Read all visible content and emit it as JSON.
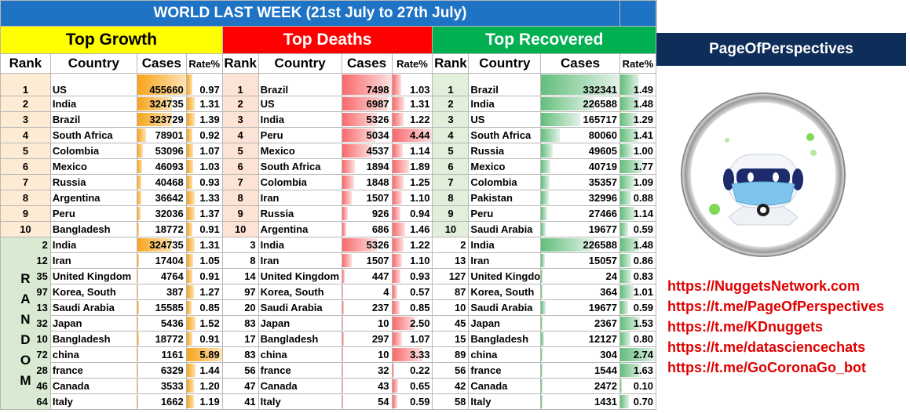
{
  "title": "WORLD LAST WEEK (21st July to 27th July)",
  "sections": {
    "growth": "Top Growth",
    "deaths": "Top Deaths",
    "recovered": "Top Recovered"
  },
  "headers": {
    "rank": "Rank",
    "country": "Country",
    "cases": "Cases",
    "rate": "Rate%"
  },
  "random_label": "RANDOM",
  "colors": {
    "title_bg": "#1f73c4",
    "growth": "#ffff00",
    "deaths": "#ff0000",
    "recovered": "#00b050",
    "brand_band": "#0e2d59",
    "link": "#e00000"
  },
  "growth_rows": [
    {
      "rank": "1",
      "country": "US",
      "cases": "455660",
      "rate": "0.97"
    },
    {
      "rank": "2",
      "country": "India",
      "cases": "324735",
      "rate": "1.31"
    },
    {
      "rank": "3",
      "country": "Brazil",
      "cases": "323729",
      "rate": "1.39"
    },
    {
      "rank": "4",
      "country": "South Africa",
      "cases": "78901",
      "rate": "0.92"
    },
    {
      "rank": "5",
      "country": "Colombia",
      "cases": "53096",
      "rate": "1.07"
    },
    {
      "rank": "6",
      "country": "Mexico",
      "cases": "46093",
      "rate": "1.03"
    },
    {
      "rank": "7",
      "country": "Russia",
      "cases": "40468",
      "rate": "0.93"
    },
    {
      "rank": "8",
      "country": "Argentina",
      "cases": "36642",
      "rate": "1.33"
    },
    {
      "rank": "9",
      "country": "Peru",
      "cases": "32036",
      "rate": "1.37"
    },
    {
      "rank": "10",
      "country": "Bangladesh",
      "cases": "18772",
      "rate": "0.91"
    },
    {
      "rank": "2",
      "country": "India",
      "cases": "324735",
      "rate": "1.31"
    },
    {
      "rank": "12",
      "country": "Iran",
      "cases": "17404",
      "rate": "1.05"
    },
    {
      "rank": "35",
      "country": "United Kingdom",
      "cases": "4764",
      "rate": "0.91"
    },
    {
      "rank": "97",
      "country": "Korea, South",
      "cases": "387",
      "rate": "1.27"
    },
    {
      "rank": "13",
      "country": "Saudi Arabia",
      "cases": "15585",
      "rate": "0.85"
    },
    {
      "rank": "32",
      "country": "Japan",
      "cases": "5436",
      "rate": "1.52"
    },
    {
      "rank": "10",
      "country": "Bangladesh",
      "cases": "18772",
      "rate": "0.91"
    },
    {
      "rank": "72",
      "country": "china",
      "cases": "1161",
      "rate": "5.89"
    },
    {
      "rank": "28",
      "country": "france",
      "cases": "6329",
      "rate": "1.44"
    },
    {
      "rank": "46",
      "country": "Canada",
      "cases": "3533",
      "rate": "1.20"
    },
    {
      "rank": "64",
      "country": "Italy",
      "cases": "1662",
      "rate": "1.19"
    }
  ],
  "deaths_rows": [
    {
      "rank": "1",
      "country": "Brazil",
      "cases": "7498",
      "rate": "1.03"
    },
    {
      "rank": "2",
      "country": "US",
      "cases": "6987",
      "rate": "1.31"
    },
    {
      "rank": "3",
      "country": "India",
      "cases": "5326",
      "rate": "1.22"
    },
    {
      "rank": "4",
      "country": "Peru",
      "cases": "5034",
      "rate": "4.44"
    },
    {
      "rank": "5",
      "country": "Mexico",
      "cases": "4537",
      "rate": "1.14"
    },
    {
      "rank": "6",
      "country": "South Africa",
      "cases": "1894",
      "rate": "1.89"
    },
    {
      "rank": "7",
      "country": "Colombia",
      "cases": "1848",
      "rate": "1.25"
    },
    {
      "rank": "8",
      "country": "Iran",
      "cases": "1507",
      "rate": "1.10"
    },
    {
      "rank": "9",
      "country": "Russia",
      "cases": "926",
      "rate": "0.94"
    },
    {
      "rank": "10",
      "country": "Argentina",
      "cases": "686",
      "rate": "1.46"
    },
    {
      "rank": "3",
      "country": "India",
      "cases": "5326",
      "rate": "1.22"
    },
    {
      "rank": "8",
      "country": "Iran",
      "cases": "1507",
      "rate": "1.10"
    },
    {
      "rank": "14",
      "country": "United Kingdom",
      "cases": "447",
      "rate": "0.93"
    },
    {
      "rank": "97",
      "country": "Korea, South",
      "cases": "4",
      "rate": "0.57"
    },
    {
      "rank": "20",
      "country": "Saudi Arabia",
      "cases": "237",
      "rate": "0.85"
    },
    {
      "rank": "83",
      "country": "Japan",
      "cases": "10",
      "rate": "2.50"
    },
    {
      "rank": "17",
      "country": "Bangladesh",
      "cases": "297",
      "rate": "1.07"
    },
    {
      "rank": "83",
      "country": "china",
      "cases": "10",
      "rate": "3.33"
    },
    {
      "rank": "56",
      "country": "france",
      "cases": "32",
      "rate": "0.22"
    },
    {
      "rank": "47",
      "country": "Canada",
      "cases": "43",
      "rate": "0.65"
    },
    {
      "rank": "41",
      "country": "Italy",
      "cases": "54",
      "rate": "0.59"
    }
  ],
  "recovered_rows": [
    {
      "rank": "1",
      "country": "Brazil",
      "cases": "332341",
      "rate": "1.49"
    },
    {
      "rank": "2",
      "country": "India",
      "cases": "226588",
      "rate": "1.48"
    },
    {
      "rank": "3",
      "country": "US",
      "cases": "165717",
      "rate": "1.29"
    },
    {
      "rank": "4",
      "country": "South Africa",
      "cases": "80060",
      "rate": "1.41"
    },
    {
      "rank": "5",
      "country": "Russia",
      "cases": "49605",
      "rate": "1.00"
    },
    {
      "rank": "6",
      "country": "Mexico",
      "cases": "40719",
      "rate": "1.77"
    },
    {
      "rank": "7",
      "country": "Colombia",
      "cases": "35357",
      "rate": "1.09"
    },
    {
      "rank": "8",
      "country": "Pakistan",
      "cases": "32996",
      "rate": "0.88"
    },
    {
      "rank": "9",
      "country": "Peru",
      "cases": "27466",
      "rate": "1.14"
    },
    {
      "rank": "10",
      "country": "Saudi Arabia",
      "cases": "19677",
      "rate": "0.59"
    },
    {
      "rank": "2",
      "country": "India",
      "cases": "226588",
      "rate": "1.48"
    },
    {
      "rank": "13",
      "country": "Iran",
      "cases": "15057",
      "rate": "0.86"
    },
    {
      "rank": "127",
      "country": "United Kingdo",
      "cases": "24",
      "rate": "0.83"
    },
    {
      "rank": "87",
      "country": "Korea, South",
      "cases": "364",
      "rate": "1.01"
    },
    {
      "rank": "10",
      "country": "Saudi Arabia",
      "cases": "19677",
      "rate": "0.59"
    },
    {
      "rank": "45",
      "country": "Japan",
      "cases": "2367",
      "rate": "1.53"
    },
    {
      "rank": "15",
      "country": "Bangladesh",
      "cases": "12127",
      "rate": "0.80"
    },
    {
      "rank": "89",
      "country": "china",
      "cases": "304",
      "rate": "2.74"
    },
    {
      "rank": "56",
      "country": "france",
      "cases": "1544",
      "rate": "1.63"
    },
    {
      "rank": "42",
      "country": "Canada",
      "cases": "2472",
      "rate": "0.10"
    },
    {
      "rank": "58",
      "country": "Italy",
      "cases": "1431",
      "rate": "0.70"
    }
  ],
  "brand": "PageOfPerspectives",
  "links": [
    "https://NuggetsNetwork.com",
    "https://t.me/PageOfPerspectives",
    "https://t.me/KDnuggets",
    "https://t.me/datasciencechats",
    "https://t.me/GoCoronaGo_bot"
  ],
  "icons": {
    "logo": "masked-robot-logo",
    "virus": "virus-icon"
  }
}
